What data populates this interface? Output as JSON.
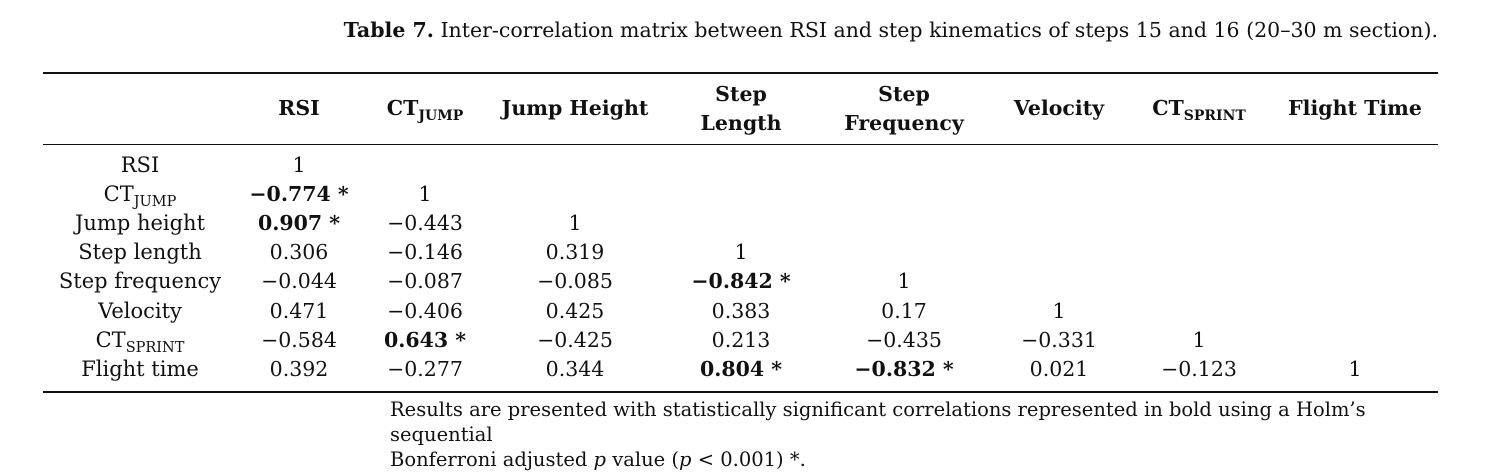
{
  "caption": {
    "label": "Table 7.",
    "text": "Inter-correlation matrix between RSI and step kinematics of steps 15 and 16 (20–30 m section)."
  },
  "columns": [
    {
      "main": "RSI",
      "sub": ""
    },
    {
      "main": "CT",
      "sub": "JUMP"
    },
    {
      "main": "Jump Height",
      "sub": ""
    },
    {
      "main": "Step",
      "line2": "Length"
    },
    {
      "main": "Step",
      "line2": "Frequency"
    },
    {
      "main": "Velocity",
      "sub": ""
    },
    {
      "main": "CT",
      "sub": "SPRINT"
    },
    {
      "main": "Flight Time",
      "sub": ""
    }
  ],
  "rows": [
    {
      "label": "RSI",
      "label_sub": "",
      "cells": [
        {
          "v": "1",
          "sig": false
        }
      ]
    },
    {
      "label": "CT",
      "label_sub": "JUMP",
      "cells": [
        {
          "v": "−0.774 *",
          "sig": true
        },
        {
          "v": "1",
          "sig": false
        }
      ]
    },
    {
      "label": "Jump height",
      "label_sub": "",
      "cells": [
        {
          "v": "0.907 *",
          "sig": true
        },
        {
          "v": "−0.443",
          "sig": false
        },
        {
          "v": "1",
          "sig": false
        }
      ]
    },
    {
      "label": "Step length",
      "label_sub": "",
      "cells": [
        {
          "v": "0.306",
          "sig": false
        },
        {
          "v": "−0.146",
          "sig": false
        },
        {
          "v": "0.319",
          "sig": false
        },
        {
          "v": "1",
          "sig": false
        }
      ]
    },
    {
      "label": "Step frequency",
      "label_sub": "",
      "cells": [
        {
          "v": "−0.044",
          "sig": false
        },
        {
          "v": "−0.087",
          "sig": false
        },
        {
          "v": "−0.085",
          "sig": false
        },
        {
          "v": "−0.842 *",
          "sig": true
        },
        {
          "v": "1",
          "sig": false
        }
      ]
    },
    {
      "label": "Velocity",
      "label_sub": "",
      "cells": [
        {
          "v": "0.471",
          "sig": false
        },
        {
          "v": "−0.406",
          "sig": false
        },
        {
          "v": "0.425",
          "sig": false
        },
        {
          "v": "0.383",
          "sig": false
        },
        {
          "v": "0.17",
          "sig": false
        },
        {
          "v": "1",
          "sig": false
        }
      ]
    },
    {
      "label": "CT",
      "label_sub": "SPRINT",
      "cells": [
        {
          "v": "−0.584",
          "sig": false
        },
        {
          "v": "0.643 *",
          "sig": true
        },
        {
          "v": "−0.425",
          "sig": false
        },
        {
          "v": "0.213",
          "sig": false
        },
        {
          "v": "−0.435",
          "sig": false
        },
        {
          "v": "−0.331",
          "sig": false
        },
        {
          "v": "1",
          "sig": false
        }
      ]
    },
    {
      "label": "Flight time",
      "label_sub": "",
      "cells": [
        {
          "v": "0.392",
          "sig": false
        },
        {
          "v": "−0.277",
          "sig": false
        },
        {
          "v": "0.344",
          "sig": false
        },
        {
          "v": "0.804 *",
          "sig": true
        },
        {
          "v": "−0.832 *",
          "sig": true
        },
        {
          "v": "0.021",
          "sig": false
        },
        {
          "v": "−0.123",
          "sig": false
        },
        {
          "v": "1",
          "sig": false
        }
      ]
    }
  ],
  "note": {
    "line1": "Results are presented with statistically significant correlations represented in bold using a Holm’s sequential",
    "line2_a": "Bonferroni adjusted ",
    "line2_p": "p",
    "line2_b": " value (",
    "line2_p2": "p",
    "line2_c": " < 0.001) *."
  }
}
